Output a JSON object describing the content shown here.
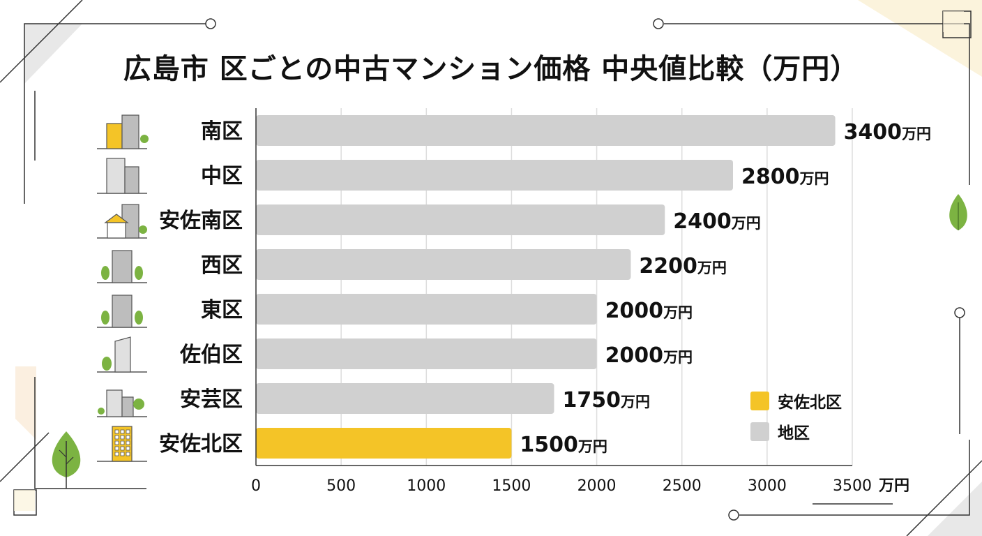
{
  "chart_data": {
    "type": "bar",
    "orientation": "horizontal",
    "title": "広島市 区ごとの中古マンション価格 中央値比較（万円）",
    "categories": [
      "南区",
      "中区",
      "安佐南区",
      "西区",
      "東区",
      "佐伯区",
      "安芸区",
      "安佐北区"
    ],
    "values": [
      3400,
      2800,
      2400,
      2200,
      2000,
      2000,
      1750,
      1500
    ],
    "value_suffix": "万円",
    "highlight_category": "安佐北区",
    "xlim": [
      0,
      3500
    ],
    "xticks": [
      "0",
      "500",
      "1000",
      "1500",
      "2000",
      "2500",
      "3000",
      "3500"
    ],
    "x_unit": "万円",
    "grid": "vertical",
    "legend": {
      "position": "bottom-right",
      "entries": [
        {
          "label": "安佐北区",
          "color": "#F4C427"
        },
        {
          "label": "地区",
          "color": "#D0D0D0"
        }
      ]
    },
    "category_icons": [
      "buildings-icon",
      "office-building-icon",
      "house-building-icon",
      "apartment-icon",
      "apartment-icon",
      "tower-icon",
      "houses-icon",
      "yellow-apartment-icon"
    ]
  },
  "colors": {
    "bar": "#D0D0D0",
    "highlight": "#F4C427",
    "text": "#111111",
    "grid": "#DDDDDD",
    "leaf": "#7CB342"
  }
}
